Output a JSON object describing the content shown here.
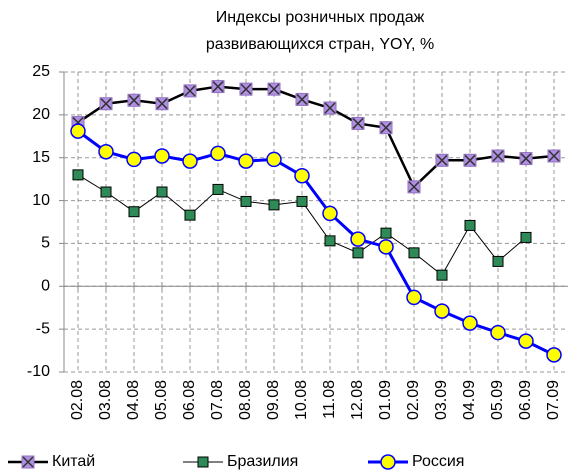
{
  "chart_data": {
    "type": "line",
    "title": [
      "Индексы розничных продаж",
      "развивающихся стран, YOY, %"
    ],
    "categories": [
      "02.08",
      "03.08",
      "04.08",
      "05.08",
      "06.08",
      "07.08",
      "08.08",
      "09.08",
      "10.08",
      "11.08",
      "12.08",
      "01.09",
      "02.09",
      "03.09",
      "04.09",
      "05.09",
      "06.09",
      "07.09"
    ],
    "series": [
      {
        "name": "Китай",
        "color": "#000000",
        "marker": "x",
        "values": [
          19.1,
          21.3,
          21.7,
          21.3,
          22.8,
          23.3,
          23.0,
          23.0,
          21.8,
          20.8,
          19.0,
          18.5,
          11.6,
          14.7,
          14.7,
          15.2,
          14.9,
          15.2
        ]
      },
      {
        "name": "Бразилия",
        "color": "#000000",
        "marker": "square",
        "values": [
          13.0,
          11.0,
          8.7,
          11.0,
          8.3,
          11.3,
          9.9,
          9.5,
          9.9,
          5.3,
          3.9,
          6.2,
          3.9,
          1.3,
          7.1,
          2.9,
          5.7,
          null
        ]
      },
      {
        "name": "Россия",
        "color": "#0000ff",
        "marker": "circle",
        "values": [
          18.1,
          15.7,
          14.8,
          15.2,
          14.6,
          15.5,
          14.6,
          14.8,
          12.9,
          8.5,
          5.5,
          4.6,
          -1.3,
          -2.9,
          -4.3,
          -5.4,
          -6.4,
          -8.0
        ]
      }
    ],
    "ylim": [
      -10,
      25
    ],
    "yticks": [
      -10,
      -5,
      0,
      5,
      10,
      15,
      20,
      25
    ],
    "grid": true,
    "legend": "bottom"
  }
}
